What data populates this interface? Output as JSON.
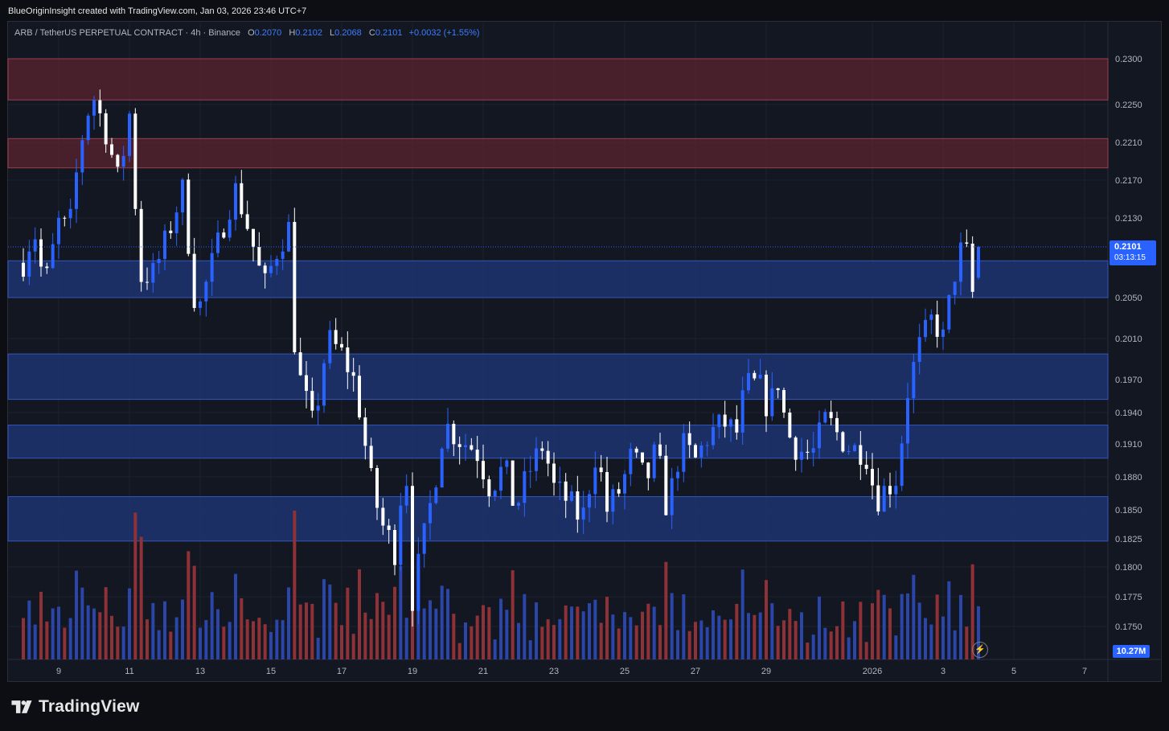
{
  "header": {
    "credit": "BlueOriginInsight created with TradingView.com, Jan 03, 2026 23:46 UTC+7"
  },
  "legend": {
    "symbol": "ARB / TetherUS PERPETUAL CONTRACT · 4h · Binance",
    "open_label": "O",
    "open": "0.2070",
    "high_label": "H",
    "high": "0.2102",
    "low_label": "L",
    "low": "0.2068",
    "close_label": "C",
    "close": "0.2101",
    "change": "+0.0032 (+1.55%)"
  },
  "price_tag": {
    "price": "0.2101",
    "countdown": "03:13:15"
  },
  "volume_tag": "10.27M",
  "brand": "TradingView",
  "colors": {
    "background": "#131722",
    "up_candle": "#2962ff",
    "down_candle": "#ffffff",
    "up_volume": "#2b45a8",
    "down_volume": "#8f3238",
    "resistance_zone": "#5b2430",
    "support_zone": "#1d3470",
    "accent": "#2962ff"
  },
  "chart_data": {
    "type": "candlestick",
    "timeframe": "4h",
    "y_axis": {
      "ylim": [
        0.1725,
        0.2315
      ],
      "scale": "non-linear (as printed)",
      "ticks": [
        "0.2300",
        "0.2250",
        "0.2210",
        "0.2170",
        "0.2130",
        "0.2101",
        "0.2050",
        "0.2010",
        "0.1970",
        "0.1940",
        "0.1910",
        "0.1880",
        "0.1850",
        "0.1825",
        "0.1800",
        "0.1775",
        "0.1750"
      ]
    },
    "x_axis": {
      "tick_labels": [
        "9",
        "11",
        "13",
        "15",
        "17",
        "19",
        "21",
        "23",
        "25",
        "27",
        "29",
        "2026",
        "3",
        "5",
        "7"
      ]
    },
    "zones": [
      {
        "kind": "resistance",
        "from": 0.2255,
        "to": 0.23
      },
      {
        "kind": "resistance",
        "from": 0.2183,
        "to": 0.2214
      },
      {
        "kind": "support",
        "from": 0.205,
        "to": 0.2087
      },
      {
        "kind": "support",
        "from": 0.1952,
        "to": 0.1995
      },
      {
        "kind": "support",
        "from": 0.1897,
        "to": 0.1928
      },
      {
        "kind": "support",
        "from": 0.1823,
        "to": 0.1862
      }
    ],
    "last_price": 0.2101,
    "grid": true,
    "anchors": [
      {
        "day": 8.0,
        "price": 0.2085
      },
      {
        "day": 8.3,
        "price": 0.212
      },
      {
        "day": 8.6,
        "price": 0.206
      },
      {
        "day": 9.0,
        "price": 0.2125
      },
      {
        "day": 9.3,
        "price": 0.2118
      },
      {
        "day": 9.6,
        "price": 0.2205
      },
      {
        "day": 9.95,
        "price": 0.2262
      },
      {
        "day": 10.3,
        "price": 0.2225
      },
      {
        "day": 10.7,
        "price": 0.2168
      },
      {
        "day": 11.0,
        "price": 0.224
      },
      {
        "day": 11.3,
        "price": 0.207
      },
      {
        "day": 11.7,
        "price": 0.2075
      },
      {
        "day": 12.2,
        "price": 0.2125
      },
      {
        "day": 12.5,
        "price": 0.216
      },
      {
        "day": 12.9,
        "price": 0.203
      },
      {
        "day": 13.3,
        "price": 0.208
      },
      {
        "day": 13.7,
        "price": 0.2128
      },
      {
        "day": 14.0,
        "price": 0.216
      },
      {
        "day": 14.4,
        "price": 0.2115
      },
      {
        "day": 14.8,
        "price": 0.206
      },
      {
        "day": 15.2,
        "price": 0.21
      },
      {
        "day": 15.5,
        "price": 0.212
      },
      {
        "day": 15.7,
        "price": 0.1985
      },
      {
        "day": 16.2,
        "price": 0.1925
      },
      {
        "day": 16.6,
        "price": 0.201
      },
      {
        "day": 17.0,
        "price": 0.1995
      },
      {
        "day": 17.4,
        "price": 0.1965
      },
      {
        "day": 17.8,
        "price": 0.188
      },
      {
        "day": 18.1,
        "price": 0.184
      },
      {
        "day": 18.5,
        "price": 0.1815
      },
      {
        "day": 18.8,
        "price": 0.19
      },
      {
        "day": 19.0,
        "price": 0.1775
      },
      {
        "day": 19.3,
        "price": 0.182
      },
      {
        "day": 19.6,
        "price": 0.187
      },
      {
        "day": 19.9,
        "price": 0.193
      },
      {
        "day": 20.3,
        "price": 0.1915
      },
      {
        "day": 20.8,
        "price": 0.1905
      },
      {
        "day": 21.2,
        "price": 0.187
      },
      {
        "day": 21.6,
        "price": 0.189
      },
      {
        "day": 21.9,
        "price": 0.185
      },
      {
        "day": 22.3,
        "price": 0.1885
      },
      {
        "day": 22.7,
        "price": 0.191
      },
      {
        "day": 23.0,
        "price": 0.187
      },
      {
        "day": 23.4,
        "price": 0.1858
      },
      {
        "day": 23.8,
        "price": 0.184
      },
      {
        "day": 24.2,
        "price": 0.1905
      },
      {
        "day": 24.5,
        "price": 0.185
      },
      {
        "day": 24.9,
        "price": 0.187
      },
      {
        "day": 25.2,
        "price": 0.19
      },
      {
        "day": 25.6,
        "price": 0.1875
      },
      {
        "day": 25.9,
        "price": 0.1905
      },
      {
        "day": 26.2,
        "price": 0.185
      },
      {
        "day": 26.6,
        "price": 0.191
      },
      {
        "day": 27.0,
        "price": 0.1895
      },
      {
        "day": 27.4,
        "price": 0.192
      },
      {
        "day": 27.8,
        "price": 0.193
      },
      {
        "day": 28.2,
        "price": 0.192
      },
      {
        "day": 28.4,
        "price": 0.1965
      },
      {
        "day": 28.8,
        "price": 0.1965
      },
      {
        "day": 29.1,
        "price": 0.194
      },
      {
        "day": 29.3,
        "price": 0.1975
      },
      {
        "day": 29.6,
        "price": 0.192
      },
      {
        "day": 29.9,
        "price": 0.1905
      },
      {
        "day": 30.3,
        "price": 0.19
      },
      {
        "day": 30.7,
        "price": 0.1935
      },
      {
        "day": 31.0,
        "price": 0.192
      },
      {
        "day": 31.4,
        "price": 0.1905
      },
      {
        "day": 31.8,
        "price": 0.1905
      },
      {
        "day": 32.1,
        "price": 0.186
      },
      {
        "day": 32.4,
        "price": 0.187
      },
      {
        "day": 32.7,
        "price": 0.188
      },
      {
        "day": 33.0,
        "price": 0.196
      },
      {
        "day": 33.3,
        "price": 0.2
      },
      {
        "day": 33.7,
        "price": 0.203
      },
      {
        "day": 34.0,
        "price": 0.201
      },
      {
        "day": 34.3,
        "price": 0.207
      },
      {
        "day": 34.6,
        "price": 0.211
      },
      {
        "day": 34.85,
        "price": 0.205
      },
      {
        "day": 35.1,
        "price": 0.2085
      }
    ],
    "volume": {
      "unit": "M",
      "max_visible": 14.5,
      "pattern_note": "per-4h-candle bars, colored by candle direction"
    }
  }
}
